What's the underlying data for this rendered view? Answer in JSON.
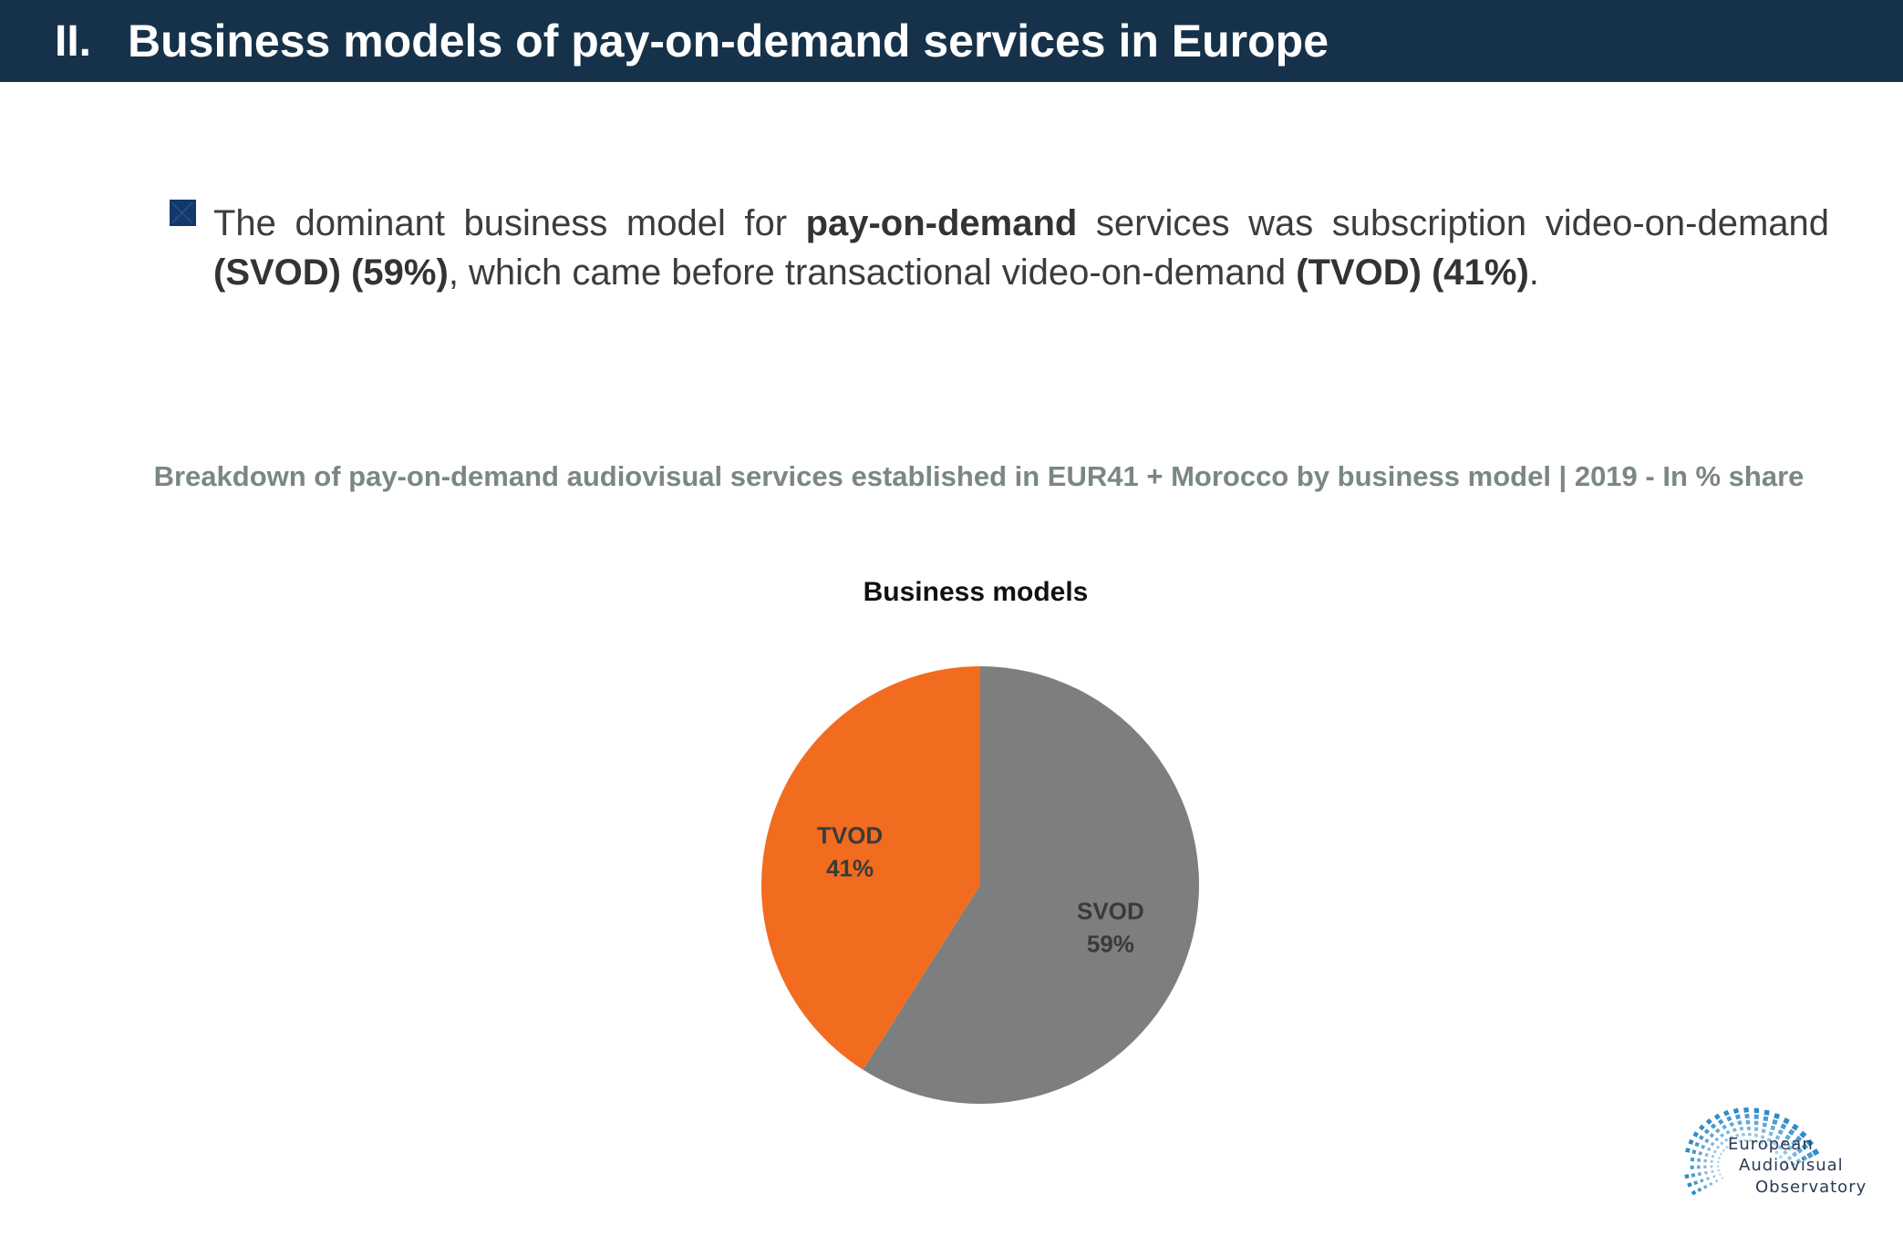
{
  "header": {
    "section_number": "II.",
    "title": "Business models of pay-on-demand services in Europe"
  },
  "bullet": {
    "part1": "The dominant business model for ",
    "bold1": "pay-on-demand",
    "part2": " services was subscription video-on-demand ",
    "bold2": "(SVOD) (59%)",
    "part3": ", which came before transactional video-on-demand ",
    "bold3": "(TVOD) (41%)",
    "part4": "."
  },
  "chart_heading": "Breakdown of pay-on-demand audiovisual services established in EUR41 + Morocco by business model | 2019 - In % share",
  "chart_data": {
    "type": "pie",
    "title": "Business models",
    "slices": [
      {
        "name": "SVOD",
        "value": 59,
        "label": "59%",
        "color": "#7d7e80"
      },
      {
        "name": "TVOD",
        "value": 41,
        "label": "41%",
        "color": "#f26c1f"
      }
    ],
    "start_angle_deg": 0,
    "direction": "clockwise",
    "legend": "none"
  },
  "logo": {
    "line1": "European",
    "line2": "Audiovisual",
    "line3": "Observatory",
    "color": "#1a7fc1"
  }
}
